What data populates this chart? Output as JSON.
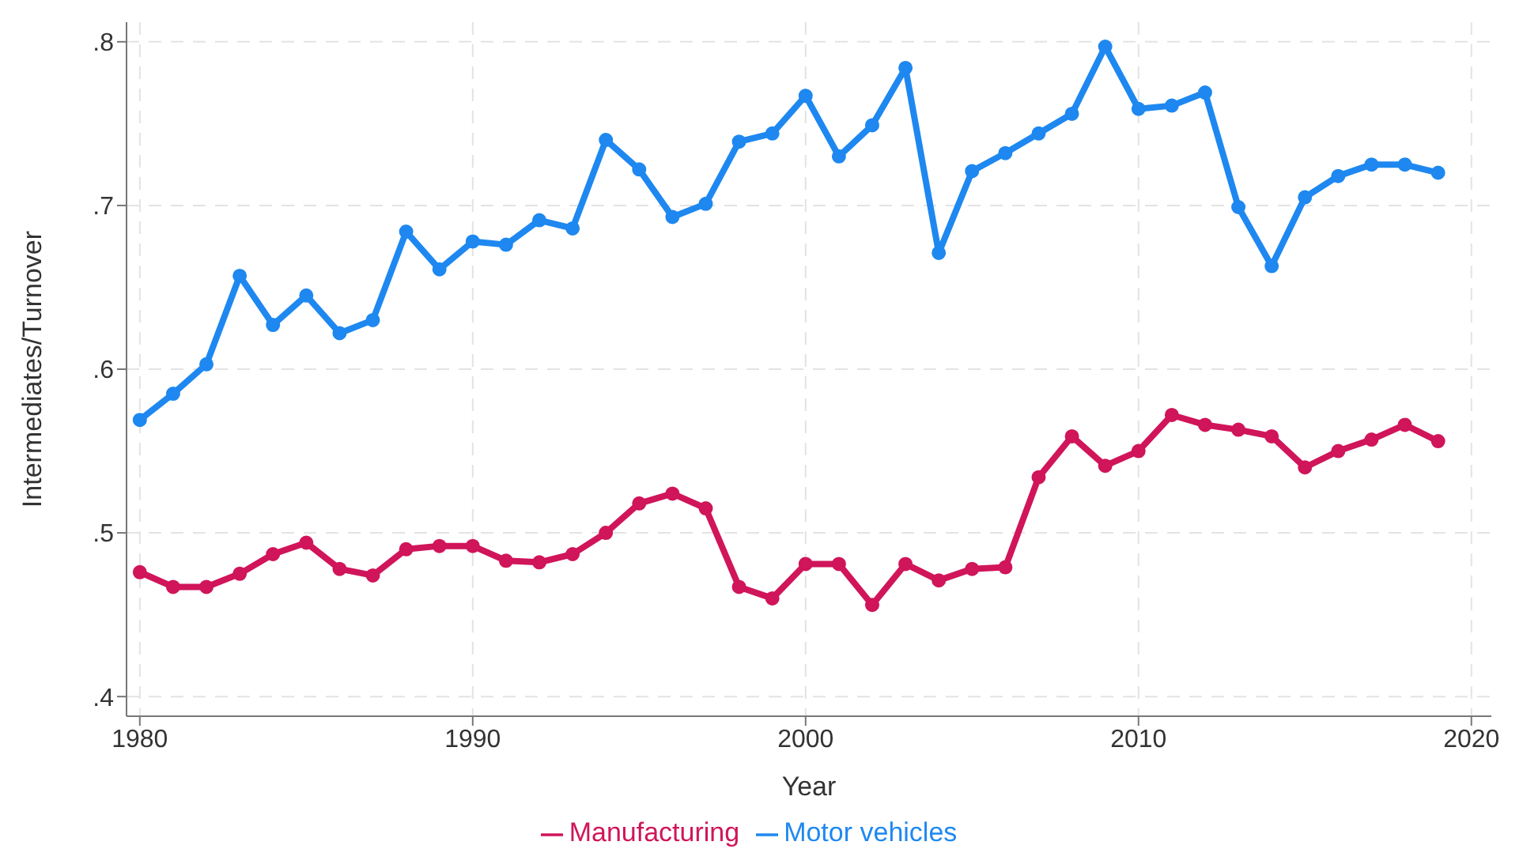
{
  "chart_data": {
    "type": "line",
    "xlabel": "Year",
    "ylabel": "Intermediates/Turnover",
    "x": [
      1980,
      1981,
      1982,
      1983,
      1984,
      1985,
      1986,
      1987,
      1988,
      1989,
      1990,
      1991,
      1992,
      1993,
      1994,
      1995,
      1996,
      1997,
      1998,
      1999,
      2000,
      2001,
      2002,
      2003,
      2004,
      2005,
      2006,
      2007,
      2008,
      2009,
      2010,
      2011,
      2012,
      2013,
      2014,
      2015,
      2016,
      2017,
      2018,
      2019
    ],
    "series": [
      {
        "name": "Motor vehicles",
        "color": "#1e88f0",
        "values": [
          0.569,
          0.585,
          0.603,
          0.657,
          0.627,
          0.645,
          0.622,
          0.63,
          0.684,
          0.661,
          0.678,
          0.676,
          0.691,
          0.686,
          0.74,
          0.722,
          0.693,
          0.701,
          0.739,
          0.744,
          0.767,
          0.73,
          0.749,
          0.784,
          0.671,
          0.721,
          0.732,
          0.744,
          0.756,
          0.797,
          0.759,
          0.761,
          0.769,
          0.699,
          0.663,
          0.705,
          0.718,
          0.725,
          0.725,
          0.72
        ]
      },
      {
        "name": "Manufacturing",
        "color": "#d0155a",
        "values": [
          0.476,
          0.467,
          0.467,
          0.475,
          0.487,
          0.494,
          0.478,
          0.474,
          0.49,
          0.492,
          0.492,
          0.483,
          0.482,
          0.487,
          0.5,
          0.518,
          0.524,
          0.515,
          0.467,
          0.46,
          0.481,
          0.481,
          0.456,
          0.481,
          0.471,
          0.478,
          0.479,
          0.534,
          0.559,
          0.541,
          0.55,
          0.572,
          0.566,
          0.563,
          0.559,
          0.54,
          0.55,
          0.557,
          0.566,
          0.556
        ]
      }
    ],
    "xlim": [
      1979.6,
      2020.6
    ],
    "xticks": [
      1980,
      1990,
      2000,
      2010,
      2020
    ],
    "ylim": [
      0.388,
      0.812
    ],
    "yticks": [
      {
        "value": 0.4,
        "label": ".4"
      },
      {
        "value": 0.5,
        "label": ".5"
      },
      {
        "value": 0.6,
        "label": ".6"
      },
      {
        "value": 0.7,
        "label": ".7"
      },
      {
        "value": 0.8,
        "label": ".8"
      }
    ],
    "grid": true,
    "legend": "bottom",
    "marker": "circle",
    "line_style": "solid"
  }
}
